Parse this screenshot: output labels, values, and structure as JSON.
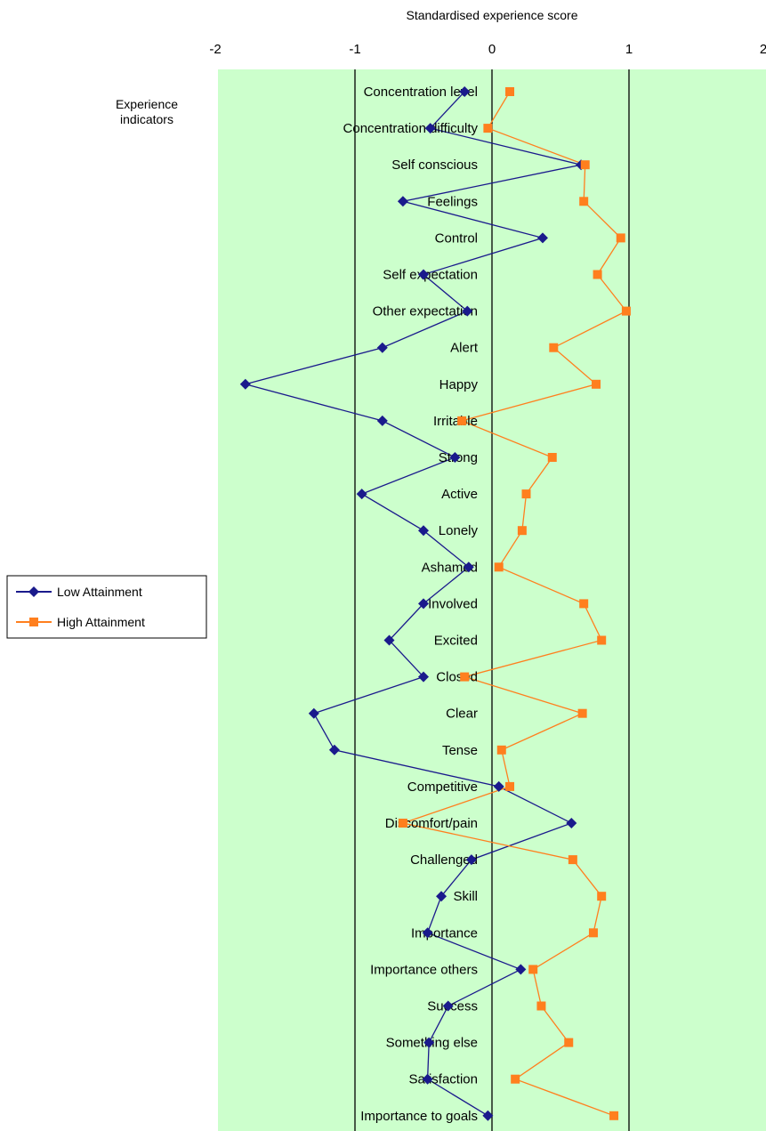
{
  "chart_data": {
    "type": "line",
    "orientation": "horizontal-value-axis",
    "title": "",
    "xlabel": "Standardised experience score",
    "ylabel": "Experience indicators",
    "xlim": [
      -2,
      2
    ],
    "x_ticks": [
      "-2",
      "-1",
      "0",
      "1",
      "2"
    ],
    "grid": "vertical lines at integer ticks",
    "legend_position": "left",
    "categories": [
      "Concentration level",
      "Concentration difficulty",
      "Self conscious",
      "Feelings",
      "Control",
      "Self expectation",
      "Other expectation",
      "Alert",
      "Happy",
      "Irritable",
      "Strong",
      "Active",
      "Lonely",
      "Ashamed",
      "Involved",
      "Excited",
      "Closed",
      "Clear",
      "Tense",
      "Competitive",
      "Discomfort/pain",
      "Challenged",
      "Skill",
      "Importance",
      "Importance others",
      "Success",
      "Something else",
      "Satisfaction",
      "Importance to goals"
    ],
    "series": [
      {
        "name": "Low Attainment",
        "color": "#1a1a8c",
        "marker": "diamond",
        "values": [
          -0.2,
          -0.45,
          0.65,
          -0.65,
          0.37,
          -0.5,
          -0.18,
          -0.8,
          -1.8,
          -0.8,
          -0.27,
          -0.95,
          -0.5,
          -0.17,
          -0.5,
          -0.75,
          -0.5,
          -1.3,
          -1.15,
          0.05,
          0.58,
          -0.15,
          -0.37,
          -0.47,
          0.21,
          -0.32,
          -0.46,
          -0.47,
          -0.03
        ]
      },
      {
        "name": "High Attainment",
        "color": "#ff7f1e",
        "marker": "square",
        "values": [
          0.13,
          -0.03,
          0.68,
          0.67,
          0.94,
          0.77,
          0.98,
          0.45,
          0.76,
          -0.22,
          0.44,
          0.25,
          0.22,
          0.05,
          0.67,
          0.8,
          -0.2,
          0.66,
          0.07,
          0.13,
          -0.65,
          0.59,
          0.8,
          0.74,
          0.3,
          0.36,
          0.56,
          0.17,
          0.89
        ]
      }
    ]
  },
  "colors": {
    "plot_background": "#ccffcc",
    "gridline": "#000000"
  }
}
